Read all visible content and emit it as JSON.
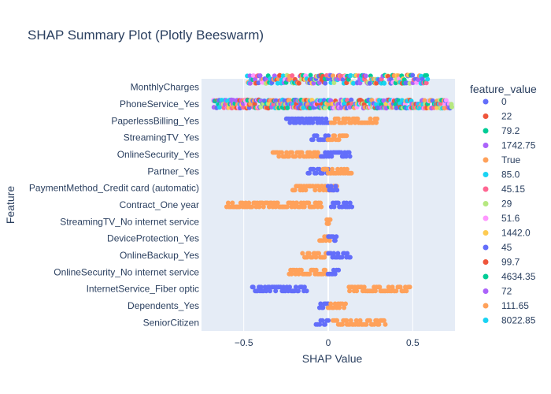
{
  "chart_data": {
    "type": "scatter",
    "title": "SHAP Summary Plot (Plotly Beeswarm)",
    "xlabel": "SHAP Value",
    "ylabel": "Feature",
    "xlim": [
      -0.75,
      0.75
    ],
    "x_ticks": [
      -0.5,
      0,
      0.5
    ],
    "x_tick_labels": [
      "−0.5",
      "0",
      "0.5"
    ],
    "grid": true,
    "legend_placement": "right",
    "legend_title": "feature_value",
    "legend": [
      {
        "label": "0",
        "color": "#636efa"
      },
      {
        "label": "22",
        "color": "#EF553B"
      },
      {
        "label": "79.2",
        "color": "#00cc96"
      },
      {
        "label": "1742.75",
        "color": "#ab63fa"
      },
      {
        "label": "True",
        "color": "#FFA15A"
      },
      {
        "label": "85.0",
        "color": "#19d3f3"
      },
      {
        "label": "45.15",
        "color": "#FF6692"
      },
      {
        "label": "29",
        "color": "#B6E880"
      },
      {
        "label": "51.6",
        "color": "#FF97FF"
      },
      {
        "label": "1442.0",
        "color": "#FECB52"
      },
      {
        "label": "45",
        "color": "#636efa"
      },
      {
        "label": "99.7",
        "color": "#EF553B"
      },
      {
        "label": "4634.35",
        "color": "#00cc96"
      },
      {
        "label": "72",
        "color": "#ab63fa"
      },
      {
        "label": "111.65",
        "color": "#FFA15A"
      },
      {
        "label": "8022.85",
        "color": "#19d3f3"
      }
    ],
    "features": [
      {
        "name": "MonthlyCharges",
        "segments": [
          {
            "x0": -0.48,
            "x1": 0.59,
            "color": "#multi",
            "band": "multi"
          }
        ]
      },
      {
        "name": "PhoneService_Yes",
        "segments": [
          {
            "x0": -0.68,
            "x1": -0.02,
            "color": "#multi",
            "band": "multi"
          },
          {
            "x0": -0.02,
            "x1": 0.73,
            "color": "#multi",
            "band": "multi"
          }
        ]
      },
      {
        "name": "PaperlessBilling_Yes",
        "segments": [
          {
            "x0": -0.25,
            "x1": 0.0,
            "color": "#636efa",
            "band": 0
          },
          {
            "x0": 0.02,
            "x1": 0.29,
            "color": "#FFA15A",
            "band": 0
          }
        ]
      },
      {
        "name": "StreamingTV_Yes",
        "segments": [
          {
            "x0": -0.1,
            "x1": 0.0,
            "color": "#636efa",
            "band": 0
          },
          {
            "x0": 0.0,
            "x1": 0.11,
            "color": "#FFA15A",
            "band": 0
          }
        ]
      },
      {
        "name": "OnlineSecurity_Yes",
        "segments": [
          {
            "x0": -0.33,
            "x1": -0.03,
            "color": "#FFA15A",
            "band": 0
          },
          {
            "x0": -0.04,
            "x1": 0.13,
            "color": "#636efa",
            "band": 0
          }
        ]
      },
      {
        "name": "Partner_Yes",
        "segments": [
          {
            "x0": -0.12,
            "x1": 0.0,
            "color": "#636efa",
            "band": 0
          },
          {
            "x0": -0.03,
            "x1": 0.14,
            "color": "#FFA15A",
            "band": 0
          }
        ]
      },
      {
        "name": "PaymentMethod_Credit card (automatic)",
        "segments": [
          {
            "x0": -0.21,
            "x1": 0.05,
            "color": "#FFA15A",
            "band": 0
          },
          {
            "x0": 0.0,
            "x1": 0.05,
            "color": "#636efa",
            "band": 0
          }
        ]
      },
      {
        "name": "Contract_One year",
        "segments": [
          {
            "x0": -0.6,
            "x1": -0.04,
            "color": "#FFA15A",
            "band": 0
          },
          {
            "x0": 0.02,
            "x1": 0.14,
            "color": "#636efa",
            "band": 0
          }
        ]
      },
      {
        "name": "StreamingTV_No internet service",
        "segments": [
          {
            "x0": -0.01,
            "x1": 0.01,
            "color": "#FFA15A",
            "band": 0
          }
        ]
      },
      {
        "name": "DeviceProtection_Yes",
        "segments": [
          {
            "x0": -0.05,
            "x1": 0.01,
            "color": "#FFA15A",
            "band": 0
          },
          {
            "x0": 0.0,
            "x1": 0.05,
            "color": "#636efa",
            "band": 0
          }
        ]
      },
      {
        "name": "OnlineBackup_Yes",
        "segments": [
          {
            "x0": -0.15,
            "x1": 0.0,
            "color": "#FFA15A",
            "band": 0
          },
          {
            "x0": 0.0,
            "x1": 0.13,
            "color": "#636efa",
            "band": 0
          }
        ]
      },
      {
        "name": "OnlineSecurity_No internet service",
        "segments": [
          {
            "x0": -0.23,
            "x1": -0.01,
            "color": "#FFA15A",
            "band": 0
          },
          {
            "x0": 0.0,
            "x1": 0.06,
            "color": "#636efa",
            "band": 0
          }
        ]
      },
      {
        "name": "InternetService_Fiber optic",
        "segments": [
          {
            "x0": -0.45,
            "x1": -0.13,
            "color": "#636efa",
            "band": 0
          },
          {
            "x0": 0.12,
            "x1": 0.48,
            "color": "#FFA15A",
            "band": 0
          }
        ]
      },
      {
        "name": "Dependents_Yes",
        "segments": [
          {
            "x0": -0.05,
            "x1": 0.0,
            "color": "#636efa",
            "band": 0
          },
          {
            "x0": 0.0,
            "x1": 0.1,
            "color": "#FFA15A",
            "band": 0
          }
        ]
      },
      {
        "name": "SeniorCitizen",
        "segments": [
          {
            "x0": -0.07,
            "x1": 0.0,
            "color": "#636efa",
            "band": 0
          },
          {
            "x0": 0.03,
            "x1": 0.34,
            "color": "#FFA15A",
            "band": 0
          }
        ]
      }
    ]
  }
}
